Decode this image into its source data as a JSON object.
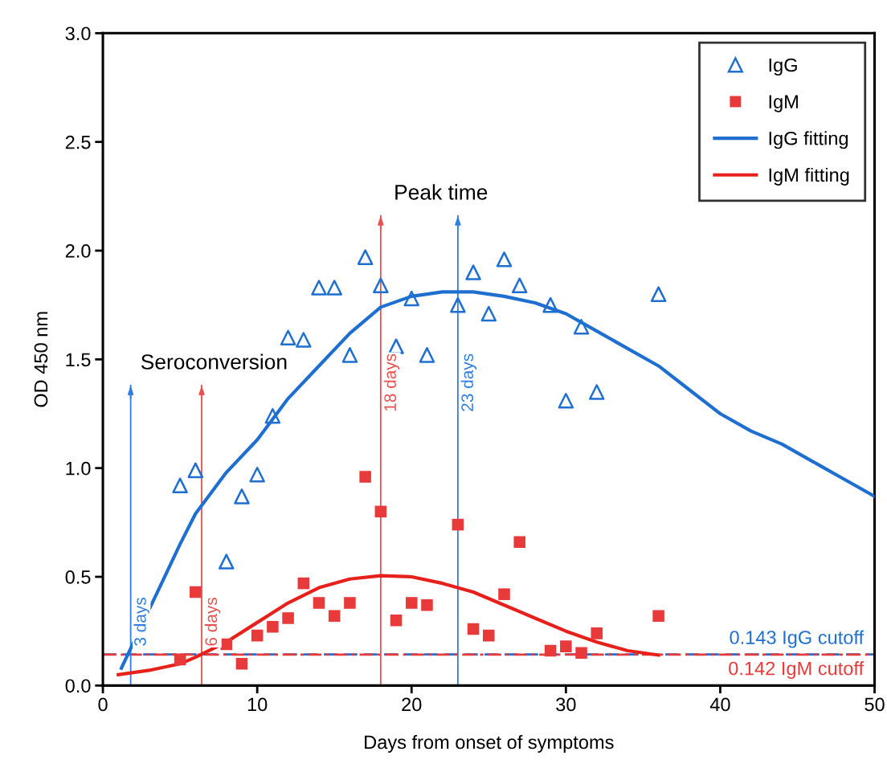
{
  "chart_data": {
    "type": "scatter",
    "xlabel": "Days from onset of symptoms",
    "ylabel": "OD 450 nm",
    "xlim": [
      0,
      50
    ],
    "xticks": [
      0,
      10,
      20,
      30,
      40,
      50
    ],
    "ylim": [
      0,
      3.0
    ],
    "yticks": [
      {
        "value": 0,
        "label": "0.0"
      },
      0.5,
      {
        "value": 1,
        "label": "1.0"
      },
      1.5,
      {
        "value": 2,
        "label": "2.0"
      },
      2.5,
      {
        "value": 3,
        "label": "3.0"
      }
    ],
    "grid": false,
    "legend": "top right",
    "series": [
      {
        "name": "IgG",
        "marker": "triangle",
        "color": "#1f6fd0",
        "x": [
          5,
          6,
          8,
          9,
          10,
          11,
          12,
          13,
          14,
          15,
          16,
          17,
          18,
          19,
          20,
          21,
          23,
          24,
          25,
          26,
          27,
          29,
          30,
          31,
          32,
          36
        ],
        "values": [
          0.92,
          0.99,
          0.57,
          0.87,
          0.97,
          1.24,
          1.6,
          1.59,
          1.83,
          1.83,
          1.52,
          1.97,
          1.84,
          1.56,
          1.78,
          1.52,
          1.75,
          1.9,
          1.71,
          1.96,
          1.84,
          1.75,
          1.31,
          1.65,
          1.35,
          1.8
        ]
      },
      {
        "name": "IgM",
        "marker": "square",
        "color": "#e83a3a",
        "x": [
          5,
          6,
          8,
          9,
          10,
          11,
          12,
          13,
          14,
          15,
          16,
          17,
          18,
          19,
          20,
          21,
          23,
          24,
          25,
          26,
          27,
          29,
          30,
          31,
          32,
          36
        ],
        "values": [
          0.12,
          0.43,
          0.19,
          0.1,
          0.23,
          0.27,
          0.31,
          0.47,
          0.38,
          0.32,
          0.38,
          0.96,
          0.8,
          0.3,
          0.38,
          0.37,
          0.74,
          0.26,
          0.23,
          0.42,
          0.66,
          0.16,
          0.18,
          0.15,
          0.24,
          0.32
        ]
      },
      {
        "name": "IgG fitting",
        "type": "line",
        "color": "#1f6fd0",
        "x": [
          1.2,
          2,
          3,
          4,
          5,
          6,
          8,
          10,
          12,
          14,
          16,
          18,
          20,
          22,
          23,
          24,
          26,
          28,
          30,
          32,
          34,
          36,
          38,
          40,
          42,
          44,
          46,
          48,
          50
        ],
        "values": [
          0.08,
          0.2,
          0.35,
          0.5,
          0.65,
          0.79,
          0.98,
          1.13,
          1.32,
          1.47,
          1.62,
          1.74,
          1.79,
          1.81,
          1.81,
          1.81,
          1.79,
          1.76,
          1.71,
          1.63,
          1.55,
          1.47,
          1.36,
          1.25,
          1.17,
          1.11,
          1.03,
          0.95,
          0.87
        ]
      },
      {
        "name": "IgM fitting",
        "type": "line",
        "color": "#e8201c",
        "x": [
          1,
          3,
          5,
          6,
          8,
          10,
          12,
          14,
          16,
          18,
          20,
          22,
          24,
          26,
          28,
          30,
          32,
          34,
          36
        ],
        "values": [
          0.05,
          0.07,
          0.1,
          0.13,
          0.2,
          0.29,
          0.38,
          0.45,
          0.49,
          0.505,
          0.5,
          0.47,
          0.43,
          0.37,
          0.31,
          0.25,
          0.2,
          0.16,
          0.14
        ]
      }
    ],
    "ref_lines": [
      {
        "axis": "y",
        "value": 0.143,
        "label": "0.143 IgG cutoff",
        "color": "#1f6fd0",
        "line_style": "dashed"
      },
      {
        "axis": "y",
        "value": 0.142,
        "label": "0.142 IgM cutoff",
        "color": "#e83a3a",
        "line_style": "dashdot"
      },
      {
        "axis": "x",
        "value": 1.8,
        "label": "3 days",
        "color": "#2f7fe0"
      },
      {
        "axis": "x",
        "value": 6.4,
        "label": "6 days",
        "color": "#e85050"
      },
      {
        "axis": "x",
        "value": 18,
        "label": "18 days",
        "color": "#e85050"
      },
      {
        "axis": "x",
        "value": 23,
        "label": "23 days",
        "color": "#2f7fe0"
      }
    ],
    "annotations": [
      "Seroconversion",
      "Peak time"
    ]
  }
}
